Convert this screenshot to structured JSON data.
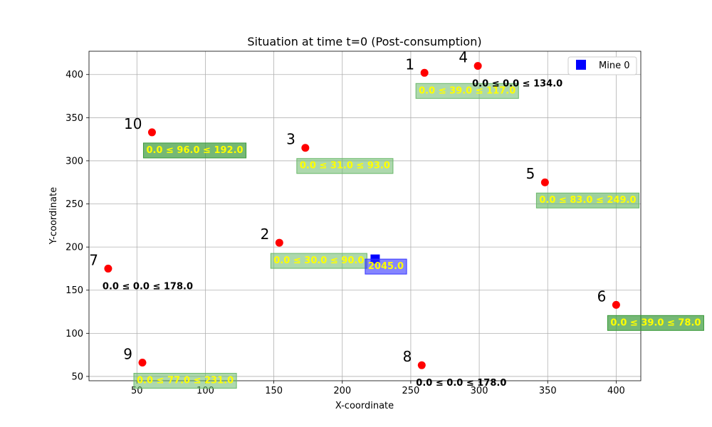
{
  "chart_data": {
    "type": "scatter",
    "title": "Situation at time t=0 (Post-consumption)",
    "xlabel": "X-coordinate",
    "ylabel": "Y-coordinate",
    "xlim": [
      15,
      418
    ],
    "ylim": [
      45,
      427
    ],
    "xticks": [
      50,
      100,
      150,
      200,
      250,
      300,
      350,
      400
    ],
    "yticks": [
      50,
      100,
      150,
      200,
      250,
      300,
      350,
      400
    ],
    "grid": true,
    "legend": {
      "placement": "top-right",
      "entries": [
        {
          "label": "Mine 0",
          "color": "#0000ff",
          "marker": "square"
        }
      ]
    },
    "points": [
      {
        "id": "1",
        "x": 260,
        "y": 402,
        "label": "0.0 ≤ 39.0 ≤ 117.0",
        "boxed": true,
        "box_color": "#6ab86a",
        "box_alpha": 0.55
      },
      {
        "id": "2",
        "x": 154,
        "y": 205,
        "label": "0.0 ≤ 30.0 ≤ 90.0",
        "boxed": true,
        "box_color": "#6ab86a",
        "box_alpha": 0.55
      },
      {
        "id": "3",
        "x": 173,
        "y": 315,
        "label": "0.0 ≤ 31.0 ≤ 93.0",
        "boxed": true,
        "box_color": "#6ab86a",
        "box_alpha": 0.55
      },
      {
        "id": "4",
        "x": 299,
        "y": 410,
        "label": "0.0 ≤ 0.0 ≤ 134.0",
        "boxed": false
      },
      {
        "id": "5",
        "x": 348,
        "y": 275,
        "label": "0.0 ≤ 83.0 ≤ 249.0",
        "boxed": true,
        "box_color": "#6ab86a",
        "box_alpha": 0.65
      },
      {
        "id": "6",
        "x": 400,
        "y": 133,
        "label": "0.0 ≤ 39.0 ≤ 78.0",
        "boxed": true,
        "box_color": "#3a9a3a",
        "box_alpha": 0.7
      },
      {
        "id": "7",
        "x": 29,
        "y": 175,
        "label": "0.0 ≤ 0.0 ≤ 178.0",
        "boxed": false
      },
      {
        "id": "8",
        "x": 258,
        "y": 63,
        "label": "0.0 ≤ 0.0 ≤ 178.0",
        "boxed": false
      },
      {
        "id": "9",
        "x": 54,
        "y": 66,
        "label": "0.0 ≤ 77.0 ≤ 231.0",
        "boxed": true,
        "box_color": "#6ab86a",
        "box_alpha": 0.55
      },
      {
        "id": "10",
        "x": 61,
        "y": 333,
        "label": "0.0 ≤ 96.0 ≤ 192.0",
        "boxed": true,
        "box_color": "#3a9a3a",
        "box_alpha": 0.7
      }
    ],
    "mines": [
      {
        "name": "Mine 0",
        "x": 224,
        "y": 186,
        "label": "2045.0",
        "box_color": "#3333ff",
        "box_alpha": 0.6
      }
    ],
    "colors": {
      "point": "#ff0000",
      "mine": "#0000ff",
      "grid": "#b0b0b0",
      "label_text": "#ffff00"
    }
  }
}
